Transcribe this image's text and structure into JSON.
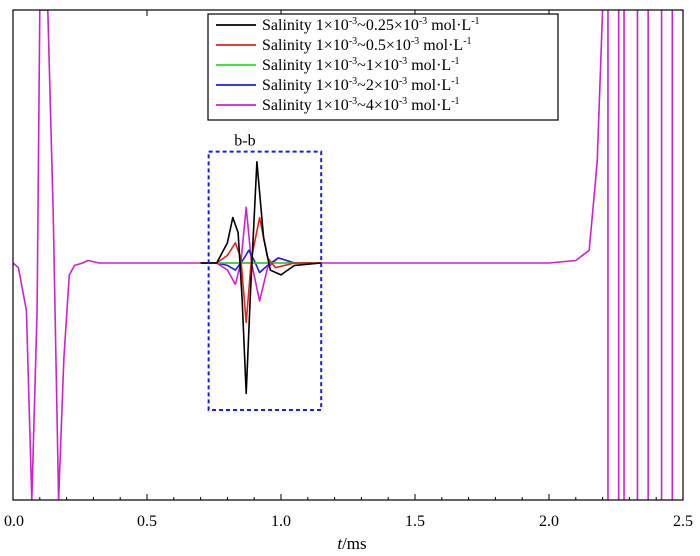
{
  "chart_data": {
    "type": "line",
    "xlabel_italic": "t",
    "xlabel_unit": "/ms",
    "xlim": [
      0.0,
      2.5
    ],
    "xticks": [
      "0.0",
      "0.5",
      "1.0",
      "1.5",
      "2.0",
      "2.5"
    ],
    "ylim": [
      -1,
      1
    ],
    "grid": false,
    "legend_position": "top-right",
    "annotation": {
      "label": "b-b",
      "x_range": [
        0.73,
        1.15
      ],
      "y_range": [
        -0.62,
        0.44
      ],
      "color": "#1f1fd6"
    },
    "series": [
      {
        "name": "Salinity 1×10⁻³~0.25×10⁻³ mol·L⁻¹",
        "color": "#000000",
        "points": [
          [
            0.7,
            0
          ],
          [
            0.76,
            0
          ],
          [
            0.8,
            0.08
          ],
          [
            0.82,
            0.18
          ],
          [
            0.84,
            0.12
          ],
          [
            0.855,
            -0.15
          ],
          [
            0.87,
            -0.55
          ],
          [
            0.885,
            -0.15
          ],
          [
            0.91,
            0.4
          ],
          [
            0.935,
            0.1
          ],
          [
            0.96,
            -0.03
          ],
          [
            1.0,
            -0.05
          ],
          [
            1.05,
            -0.01
          ],
          [
            1.15,
            0
          ]
        ]
      },
      {
        "name": "Salinity 1×10⁻³~0.5×10⁻³ mol·L⁻¹",
        "color": "#e0241f",
        "points": [
          [
            0.7,
            0
          ],
          [
            0.76,
            0
          ],
          [
            0.8,
            0.03
          ],
          [
            0.83,
            0.08
          ],
          [
            0.85,
            0.02
          ],
          [
            0.87,
            -0.25
          ],
          [
            0.89,
            0.02
          ],
          [
            0.92,
            0.18
          ],
          [
            0.95,
            0.02
          ],
          [
            0.98,
            -0.02
          ],
          [
            1.05,
            0
          ],
          [
            1.15,
            0
          ]
        ]
      },
      {
        "name": "Salinity 1×10⁻³~1×10⁻³ mol·L⁻¹",
        "color": "#22e022",
        "points": [
          [
            0.7,
            0
          ],
          [
            1.15,
            0
          ]
        ]
      },
      {
        "name": "Salinity 1×10⁻³~2×10⁻³ mol·L⁻¹",
        "color": "#1f1fe0",
        "points": [
          [
            0.7,
            0
          ],
          [
            0.76,
            0
          ],
          [
            0.8,
            -0.01
          ],
          [
            0.83,
            -0.03
          ],
          [
            0.86,
            0.015
          ],
          [
            0.88,
            0.05
          ],
          [
            0.9,
            0.01
          ],
          [
            0.92,
            -0.04
          ],
          [
            0.95,
            -0.01
          ],
          [
            0.99,
            0.02
          ],
          [
            1.05,
            0
          ],
          [
            1.15,
            0
          ]
        ]
      },
      {
        "name": "Salinity 1×10⁻³~4×10⁻³ mol·L⁻¹",
        "color": "#cc22cc",
        "points": [
          [
            0.7,
            0
          ],
          [
            0.76,
            0
          ],
          [
            0.8,
            -0.03
          ],
          [
            0.83,
            -0.09
          ],
          [
            0.85,
            0.0
          ],
          [
            0.87,
            0.22
          ],
          [
            0.89,
            0.0
          ],
          [
            0.92,
            -0.16
          ],
          [
            0.95,
            -0.02
          ],
          [
            0.99,
            0.02
          ],
          [
            1.05,
            0
          ],
          [
            1.15,
            0
          ]
        ]
      }
    ],
    "legend": [
      {
        "label_parts": [
          "Salinity 1×10",
          "-3",
          "~0.25×10",
          "-3",
          " mol·L",
          "-1"
        ]
      },
      {
        "label_parts": [
          "Salinity 1×10",
          "-3",
          "~0.5×10",
          "-3",
          " mol·L",
          "-1"
        ]
      },
      {
        "label_parts": [
          "Salinity 1×10",
          "-3",
          "~1×10",
          "-3",
          " mol·L",
          "-1"
        ]
      },
      {
        "label_parts": [
          "Salinity 1×10",
          "-3",
          "~2×10",
          "-3",
          " mol·L",
          "-1"
        ]
      },
      {
        "label_parts": [
          "Salinity 1×10",
          "-3",
          "~4×10",
          "-3",
          " mol·L",
          "-1"
        ]
      }
    ],
    "common_signal": {
      "color": "#cc22cc",
      "points": [
        [
          0.0,
          0.0
        ],
        [
          0.02,
          -0.02
        ],
        [
          0.05,
          -0.2
        ],
        [
          0.07,
          -1.0
        ],
        [
          0.09,
          -0.2
        ],
        [
          0.1,
          1.0
        ],
        [
          0.13,
          1.0
        ],
        [
          0.15,
          0.2
        ],
        [
          0.17,
          -1.0
        ],
        [
          0.19,
          -0.4
        ],
        [
          0.21,
          -0.05
        ],
        [
          0.23,
          -0.01
        ],
        [
          0.26,
          0.0
        ],
        [
          0.28,
          0.01
        ],
        [
          0.32,
          0.0
        ],
        [
          0.5,
          0.0
        ],
        [
          0.7,
          0.0
        ],
        [
          1.15,
          0.0
        ],
        [
          1.5,
          0.0
        ],
        [
          2.0,
          0.0
        ],
        [
          2.1,
          0.01
        ],
        [
          2.15,
          0.05
        ],
        [
          2.18,
          0.4
        ],
        [
          2.2,
          1.0
        ]
      ],
      "oscillation_verticals": [
        2.22,
        2.26,
        2.28,
        2.33,
        2.37,
        2.42,
        2.46
      ]
    }
  }
}
